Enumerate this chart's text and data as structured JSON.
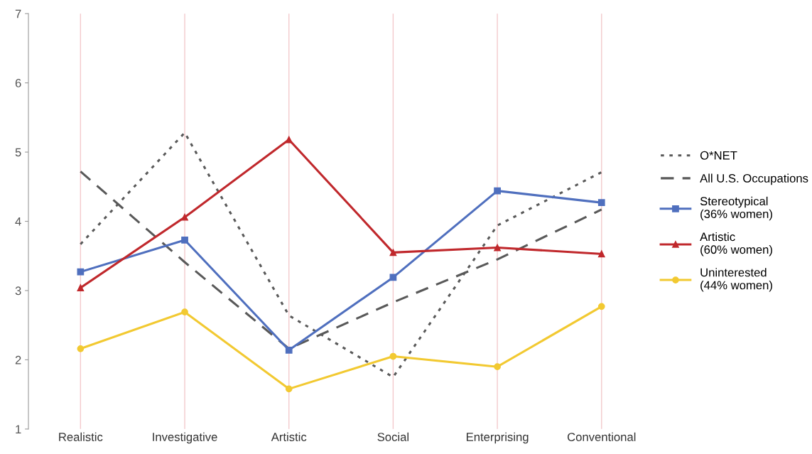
{
  "chart_data": {
    "type": "line",
    "categories": [
      "Realistic",
      "Investigative",
      "Artistic",
      "Social",
      "Enterprising",
      "Conventional"
    ],
    "ylim": [
      1,
      7
    ],
    "yticks": [
      1,
      2,
      3,
      4,
      5,
      6,
      7
    ],
    "grid": "x",
    "legend": "right",
    "series": [
      {
        "name": "O*NET",
        "color": "#595959",
        "line_style": "dotted",
        "marker": "none",
        "values": [
          3.67,
          5.28,
          2.64,
          1.75,
          3.94,
          4.71
        ]
      },
      {
        "name": "All U.S. Occupations",
        "color": "#595959",
        "line_style": "dashed",
        "marker": "none",
        "values": [
          4.72,
          3.41,
          2.16,
          2.83,
          3.45,
          4.17
        ]
      },
      {
        "name": "Stereotypical\n(36% women)",
        "color": "#4f6fbe",
        "line_style": "solid",
        "marker": "square",
        "values": [
          3.27,
          3.73,
          2.14,
          3.19,
          4.44,
          4.27
        ]
      },
      {
        "name": "Artistic\n(60% women)",
        "color": "#c0282c",
        "line_style": "solid",
        "marker": "triangle",
        "values": [
          3.04,
          4.06,
          5.18,
          3.55,
          3.62,
          3.53
        ]
      },
      {
        "name": "Uninterested\n(44% women)",
        "color": "#f2c931",
        "line_style": "solid",
        "marker": "circle",
        "values": [
          2.16,
          2.69,
          1.58,
          2.05,
          1.9,
          2.77
        ]
      }
    ]
  }
}
